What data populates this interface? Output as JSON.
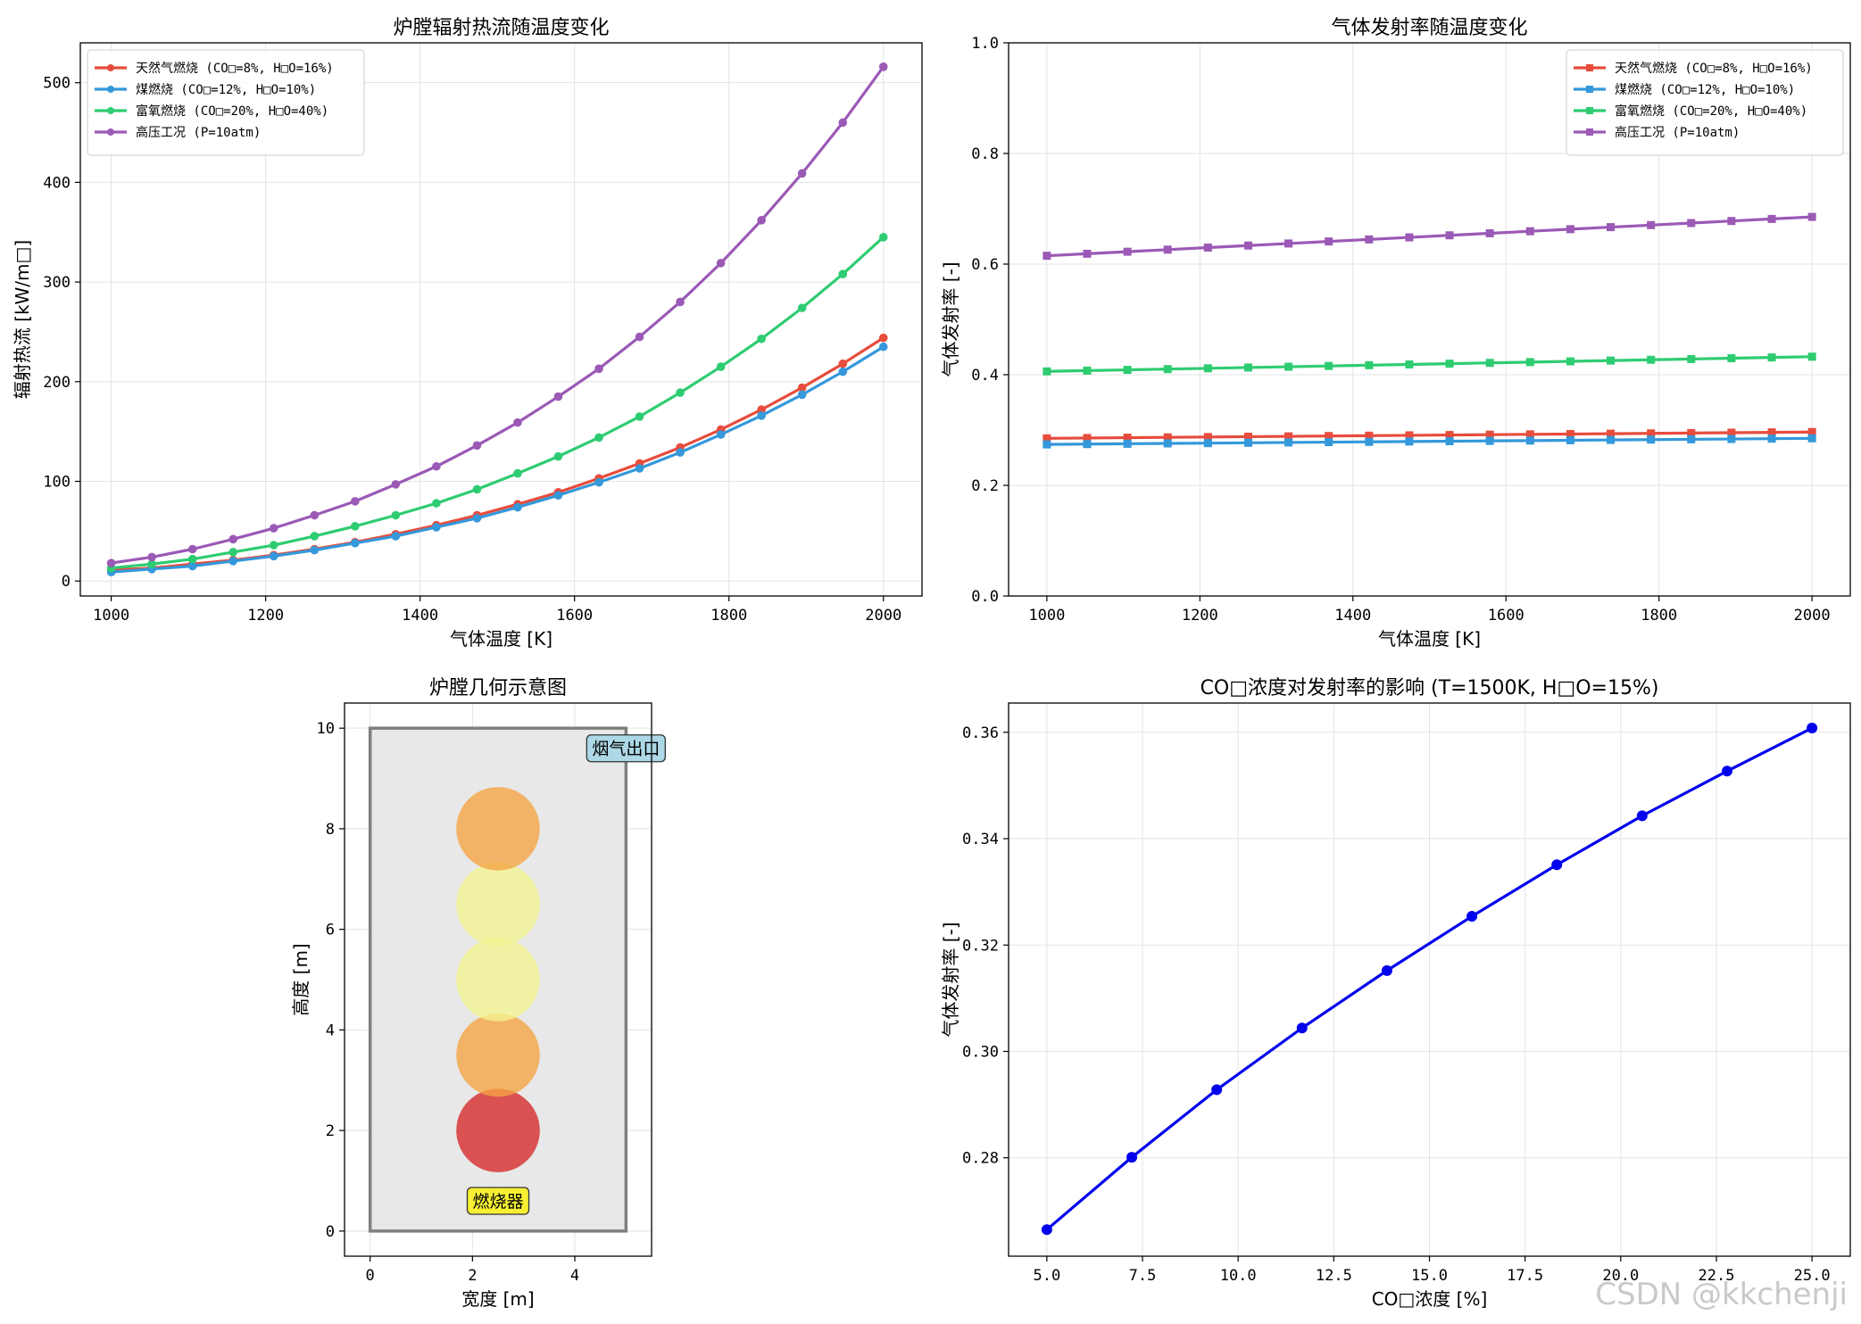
{
  "colors": {
    "natural_gas": "#e74c3c",
    "coal": "#3498db",
    "oxy": "#2ecc71",
    "high_pressure": "#9b59b6",
    "co2_line": "#0000ee"
  },
  "watermark": "CSDN @kkchenji",
  "chart_data": [
    {
      "type": "line",
      "title": "炉膛辐射热流随温度变化",
      "xlabel": "气体温度 [K]",
      "ylabel": "辐射热流 [kW/m□]",
      "xlim": [
        960,
        2050
      ],
      "ylim": [
        -15,
        540
      ],
      "xticks": [
        1000,
        1200,
        1400,
        1600,
        1800,
        2000
      ],
      "yticks": [
        0,
        100,
        200,
        300,
        400,
        500
      ],
      "marker": "circle",
      "legend_position": "top-left",
      "grid": true,
      "x": [
        1000,
        1052.6,
        1105.3,
        1157.9,
        1210.5,
        1263.2,
        1315.8,
        1368.4,
        1421.1,
        1473.7,
        1526.3,
        1578.9,
        1631.6,
        1684.2,
        1736.8,
        1789.5,
        1842.1,
        1894.7,
        1947.4,
        2000
      ],
      "series": [
        {
          "name": "天然气燃烧 (CO□=8%, H□O=16%)",
          "color_key": "natural_gas",
          "values": [
            11,
            13,
            17,
            21,
            26,
            32,
            39,
            47,
            56,
            66,
            77,
            89,
            103,
            118,
            134,
            152,
            172,
            194,
            218,
            244
          ]
        },
        {
          "name": "煤燃烧 (CO□=12%, H□O=10%)",
          "color_key": "coal",
          "values": [
            9,
            12,
            15,
            20,
            25,
            31,
            38,
            45,
            54,
            63,
            74,
            86,
            99,
            113,
            129,
            147,
            166,
            187,
            210,
            235
          ]
        },
        {
          "name": "富氧燃烧 (CO□=20%, H□O=40%)",
          "color_key": "oxy",
          "values": [
            13,
            17,
            22,
            29,
            36,
            45,
            55,
            66,
            78,
            92,
            108,
            125,
            144,
            165,
            189,
            215,
            243,
            274,
            308,
            345
          ]
        },
        {
          "name": "高压工况 (P=10atm)",
          "color_key": "high_pressure",
          "values": [
            18,
            24,
            32,
            42,
            53,
            66,
            80,
            97,
            115,
            136,
            159,
            185,
            213,
            245,
            280,
            319,
            362,
            409,
            460,
            516
          ]
        }
      ]
    },
    {
      "type": "line",
      "title": "气体发射率随温度变化",
      "xlabel": "气体温度 [K]",
      "ylabel": "气体发射率 [-]",
      "xlim": [
        950,
        2050
      ],
      "ylim": [
        0,
        1.0
      ],
      "xticks": [
        1000,
        1200,
        1400,
        1600,
        1800,
        2000
      ],
      "yticks": [
        0.0,
        0.2,
        0.4,
        0.6,
        0.8,
        1.0
      ],
      "marker": "square",
      "legend_position": "top-right",
      "grid": true,
      "x": [
        1000,
        1052.6,
        1105.3,
        1157.9,
        1210.5,
        1263.2,
        1315.8,
        1368.4,
        1421.1,
        1473.7,
        1526.3,
        1578.9,
        1631.6,
        1684.2,
        1736.8,
        1789.5,
        1842.1,
        1894.7,
        1947.4,
        2000
      ],
      "series": [
        {
          "name": "天然气燃烧 (CO□=8%, H□O=16%)",
          "color_key": "natural_gas",
          "values": [
            0.285,
            0.2856,
            0.2862,
            0.2868,
            0.2874,
            0.288,
            0.2886,
            0.2892,
            0.2898,
            0.2904,
            0.291,
            0.2916,
            0.2922,
            0.2928,
            0.2934,
            0.294,
            0.2946,
            0.2952,
            0.2958,
            0.2964
          ]
        },
        {
          "name": "煤燃烧 (CO□=12%, H□O=10%)",
          "color_key": "coal",
          "values": [
            0.274,
            0.2746,
            0.2752,
            0.2758,
            0.2763,
            0.2769,
            0.2775,
            0.2781,
            0.2786,
            0.2792,
            0.2798,
            0.2804,
            0.2809,
            0.2815,
            0.2821,
            0.2827,
            0.2832,
            0.2838,
            0.2844,
            0.285
          ]
        },
        {
          "name": "富氧燃烧 (CO□=20%, H□O=40%)",
          "color_key": "oxy",
          "values": [
            0.406,
            0.4074,
            0.4088,
            0.4102,
            0.4116,
            0.413,
            0.4144,
            0.4158,
            0.4172,
            0.4186,
            0.42,
            0.4214,
            0.4228,
            0.4242,
            0.4256,
            0.427,
            0.4284,
            0.4298,
            0.4312,
            0.4326
          ]
        },
        {
          "name": "高压工况 (P=10atm)",
          "color_key": "high_pressure",
          "values": [
            0.615,
            0.6187,
            0.6224,
            0.6261,
            0.6298,
            0.6335,
            0.6372,
            0.6409,
            0.6446,
            0.6483,
            0.652,
            0.6557,
            0.6594,
            0.6631,
            0.6668,
            0.6705,
            0.6742,
            0.6779,
            0.6816,
            0.6853
          ]
        }
      ]
    },
    {
      "type": "diagram",
      "title": "炉膛几何示意图",
      "xlabel": "宽度 [m]",
      "ylabel": "高度 [m]",
      "xlim": [
        -0.5,
        5.5
      ],
      "ylim": [
        -0.5,
        10.5
      ],
      "xticks": [
        0,
        2,
        4
      ],
      "yticks": [
        0,
        2,
        4,
        6,
        8,
        10
      ],
      "grid": true,
      "furnace": {
        "x": 0,
        "y": 0,
        "width": 5,
        "height": 10,
        "fill": "#e8e8e8",
        "edge": "#808080"
      },
      "flames": [
        {
          "cx": 2.5,
          "cy": 2,
          "r": 0.8,
          "color": "#d62728"
        },
        {
          "cx": 2.5,
          "cy": 3.5,
          "r": 0.8,
          "color": "#f5a442"
        },
        {
          "cx": 2.5,
          "cy": 5,
          "r": 0.8,
          "color": "#f5f592"
        },
        {
          "cx": 2.5,
          "cy": 6.5,
          "r": 0.8,
          "color": "#f5f592"
        },
        {
          "cx": 2.5,
          "cy": 8,
          "r": 0.8,
          "color": "#f5a442"
        }
      ],
      "annotations": [
        {
          "text": "燃烧器",
          "x": 2.5,
          "y": 0.6,
          "bg": "#f7f033"
        },
        {
          "text": "烟气出口",
          "x": 5.0,
          "y": 9.6,
          "bg": "#add8e6"
        }
      ]
    },
    {
      "type": "line",
      "title": "CO□浓度对发射率的影响 (T=1500K, H□O=15%)",
      "xlabel": "CO□浓度 [%]",
      "ylabel": "气体发射率 [-]",
      "xlim": [
        4.0,
        26.0
      ],
      "ylim": [
        0.2615,
        0.3655
      ],
      "xticks": [
        5.0,
        7.5,
        10.0,
        12.5,
        15.0,
        17.5,
        20.0,
        22.5,
        25.0
      ],
      "yticks": [
        0.28,
        0.3,
        0.32,
        0.34,
        0.36
      ],
      "marker": "circle",
      "grid": true,
      "x": [
        5.0,
        7.22,
        9.44,
        11.67,
        13.89,
        16.11,
        18.33,
        20.56,
        22.78,
        25.0
      ],
      "series": [
        {
          "name": "",
          "color_key": "co2_line",
          "values": [
            0.2665,
            0.2801,
            0.2928,
            0.3044,
            0.3152,
            0.3254,
            0.3351,
            0.3443,
            0.3527,
            0.3608
          ]
        }
      ]
    }
  ]
}
